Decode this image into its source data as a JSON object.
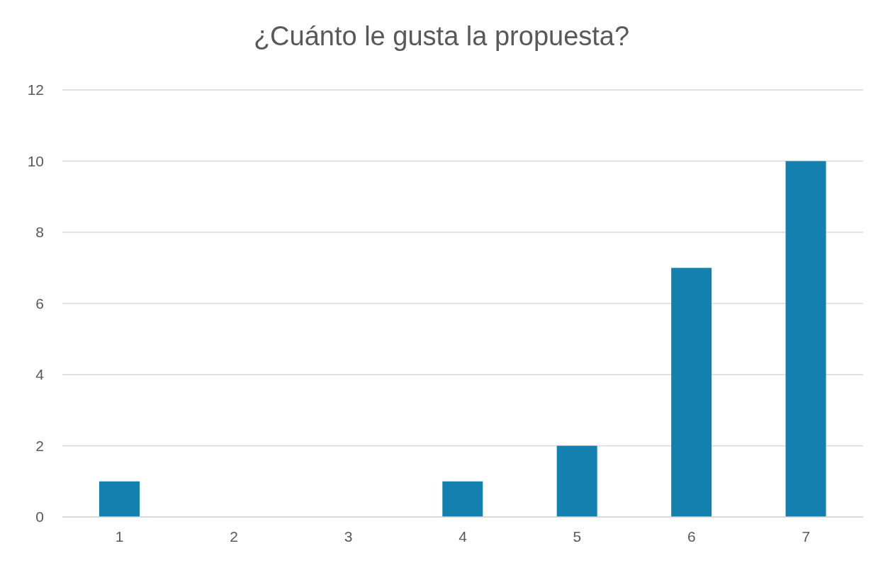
{
  "chart_data": {
    "type": "bar",
    "title": "¿Cuánto le gusta la propuesta?",
    "categories": [
      "1",
      "2",
      "3",
      "4",
      "5",
      "6",
      "7"
    ],
    "values": [
      1,
      0,
      0,
      1,
      2,
      7,
      10
    ],
    "color": "#1380b0",
    "ylim": [
      0,
      12
    ],
    "yticks": [
      0,
      2,
      4,
      6,
      8,
      10,
      12
    ],
    "grid": "y"
  }
}
